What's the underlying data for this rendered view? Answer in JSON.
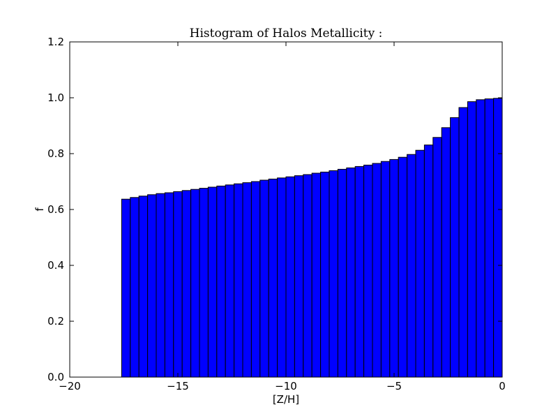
{
  "chart_data": {
    "type": "histogram",
    "title": "Histogram of Halos Metallicity :",
    "x_label": "[Z/H]",
    "y_label": "f",
    "bins": [
      -20,
      -19.6,
      -19.2,
      -18.8,
      -18.4,
      -18,
      -17.6,
      -17.2,
      -16.8,
      -16.4,
      -16,
      -15.6,
      -15.2,
      -14.8,
      -14.4,
      -14,
      -13.6,
      -13.2,
      -12.8,
      -12.4,
      -12,
      -11.6,
      -11.2,
      -10.8,
      -10.4,
      -10,
      -9.6,
      -9.2,
      -8.8,
      -8.4,
      -8,
      -7.6,
      -7.2,
      -6.8,
      -6.4,
      -6,
      -5.6,
      -5.2,
      -4.8,
      -4.4,
      -4,
      -3.6,
      -3.2,
      -2.8,
      -2.4,
      -2,
      -1.6,
      -1.2,
      -0.8,
      -0.4,
      0
    ],
    "counts": [
      0,
      0,
      0,
      0,
      0,
      0,
      0.637,
      0.643,
      0.648,
      0.653,
      0.657,
      0.66,
      0.664,
      0.668,
      0.672,
      0.676,
      0.68,
      0.684,
      0.688,
      0.692,
      0.696,
      0.7,
      0.705,
      0.709,
      0.713,
      0.717,
      0.721,
      0.725,
      0.73,
      0.734,
      0.739,
      0.744,
      0.749,
      0.754,
      0.759,
      0.765,
      0.772,
      0.779,
      0.787,
      0.797,
      0.812,
      0.831,
      0.858,
      0.893,
      0.929,
      0.965,
      0.986,
      0.993,
      0.996,
      0.998,
      1.0
    ],
    "color": "#0000ff",
    "edge_color": "#000000",
    "xlim": [
      -20,
      0
    ],
    "ylim": [
      0,
      1.2
    ],
    "xticks": [
      {
        "value": -20,
        "label": "−20"
      },
      {
        "value": -15,
        "label": "−15"
      },
      {
        "value": -10,
        "label": "−10"
      },
      {
        "value": -5,
        "label": "−5"
      },
      0
    ],
    "yticks": [
      {
        "value": 0,
        "label": "0.0"
      },
      0.2,
      0.4,
      0.6,
      0.8,
      {
        "value": 1,
        "label": "1.0"
      },
      1.2
    ]
  }
}
